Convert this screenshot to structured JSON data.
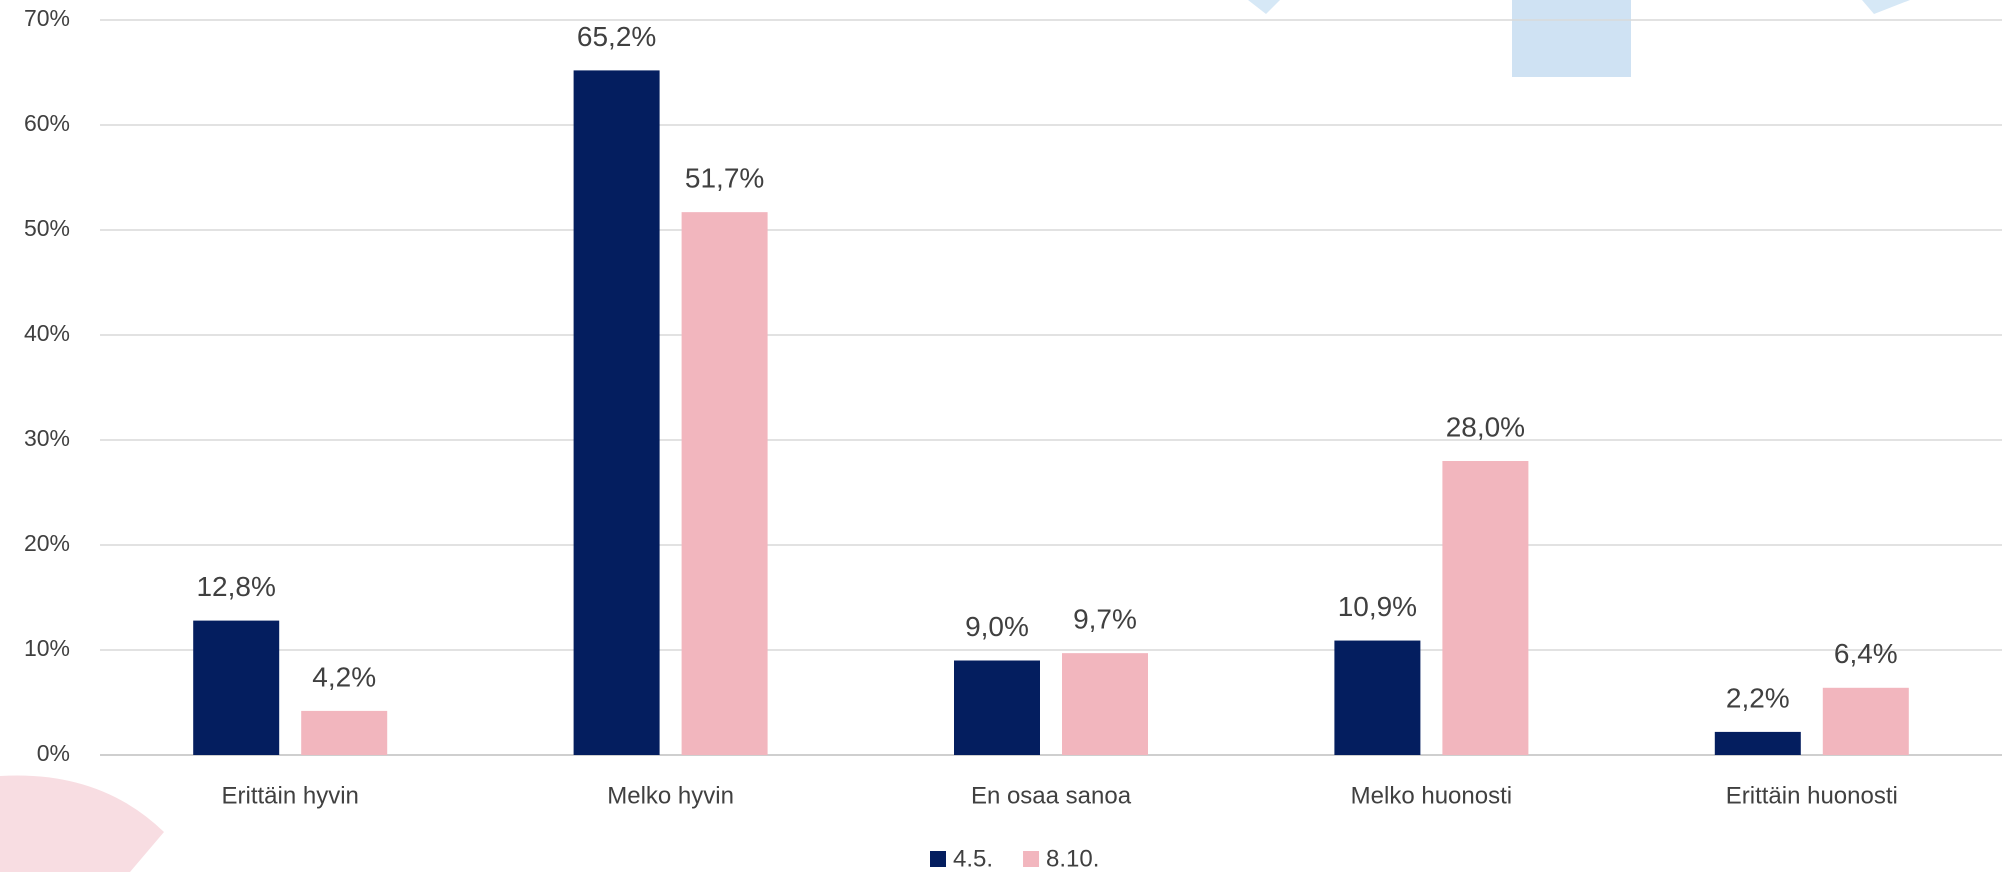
{
  "chart_data": {
    "type": "bar",
    "categories": [
      "Erittäin hyvin",
      "Melko hyvin",
      "En osaa sanoa",
      "Melko huonosti",
      "Erittäin huonosti"
    ],
    "series": [
      {
        "name": "4.5.",
        "color": "#041e5f",
        "values": [
          12.8,
          65.2,
          9.0,
          10.9,
          2.2
        ],
        "value_labels": [
          "12,8%",
          "65,2%",
          "9,0%",
          "10,9%",
          "2,2%"
        ]
      },
      {
        "name": "8.10.",
        "color": "#f2b6be",
        "values": [
          4.2,
          51.7,
          9.7,
          28.0,
          6.4
        ],
        "value_labels": [
          "4,2%",
          "51,7%",
          "9,7%",
          "28,0%",
          "6,4%"
        ]
      }
    ],
    "ylim": [
      0,
      70
    ],
    "yticks": [
      {
        "value": 0,
        "label": "0%"
      },
      {
        "value": 10,
        "label": "10%"
      },
      {
        "value": 20,
        "label": "20%"
      },
      {
        "value": 30,
        "label": "30%"
      },
      {
        "value": 40,
        "label": "40%"
      },
      {
        "value": 50,
        "label": "50%"
      },
      {
        "value": 60,
        "label": "60%"
      },
      {
        "value": 70,
        "label": "70%"
      }
    ],
    "grid": true,
    "legend": "bottom"
  }
}
